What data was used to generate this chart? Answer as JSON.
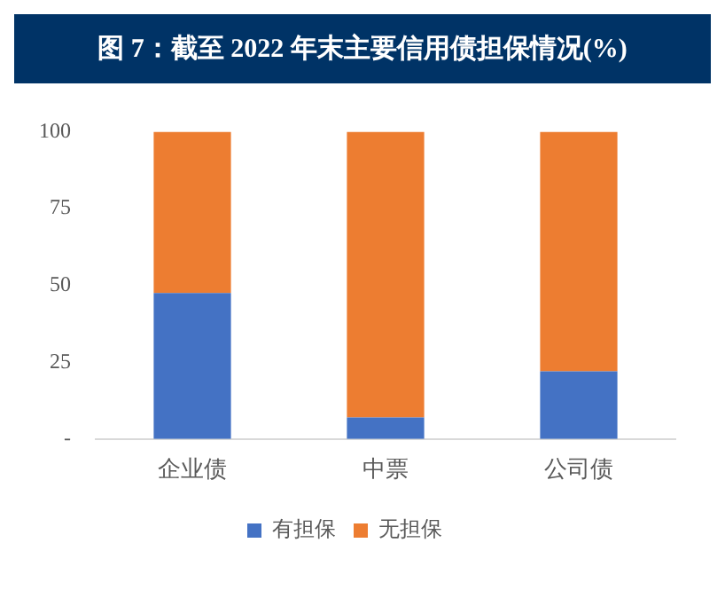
{
  "chart_data": {
    "type": "bar",
    "title": "图 7：截至 2022 年末主要信用债担保情况(%)",
    "categories": [
      "企业债",
      "中票",
      "公司债"
    ],
    "stacked": true,
    "series": [
      {
        "name": "有担保",
        "color": "#4472c4",
        "values": [
          47.5,
          7,
          22
        ]
      },
      {
        "name": "无担保",
        "color": "#ed7d31",
        "values": [
          52.5,
          93,
          78
        ]
      }
    ],
    "ylim": [
      0,
      100
    ],
    "yticks": [
      {
        "value": 0,
        "label": "-"
      },
      25,
      50,
      75,
      100
    ],
    "grid": false,
    "legend": "bottom"
  }
}
